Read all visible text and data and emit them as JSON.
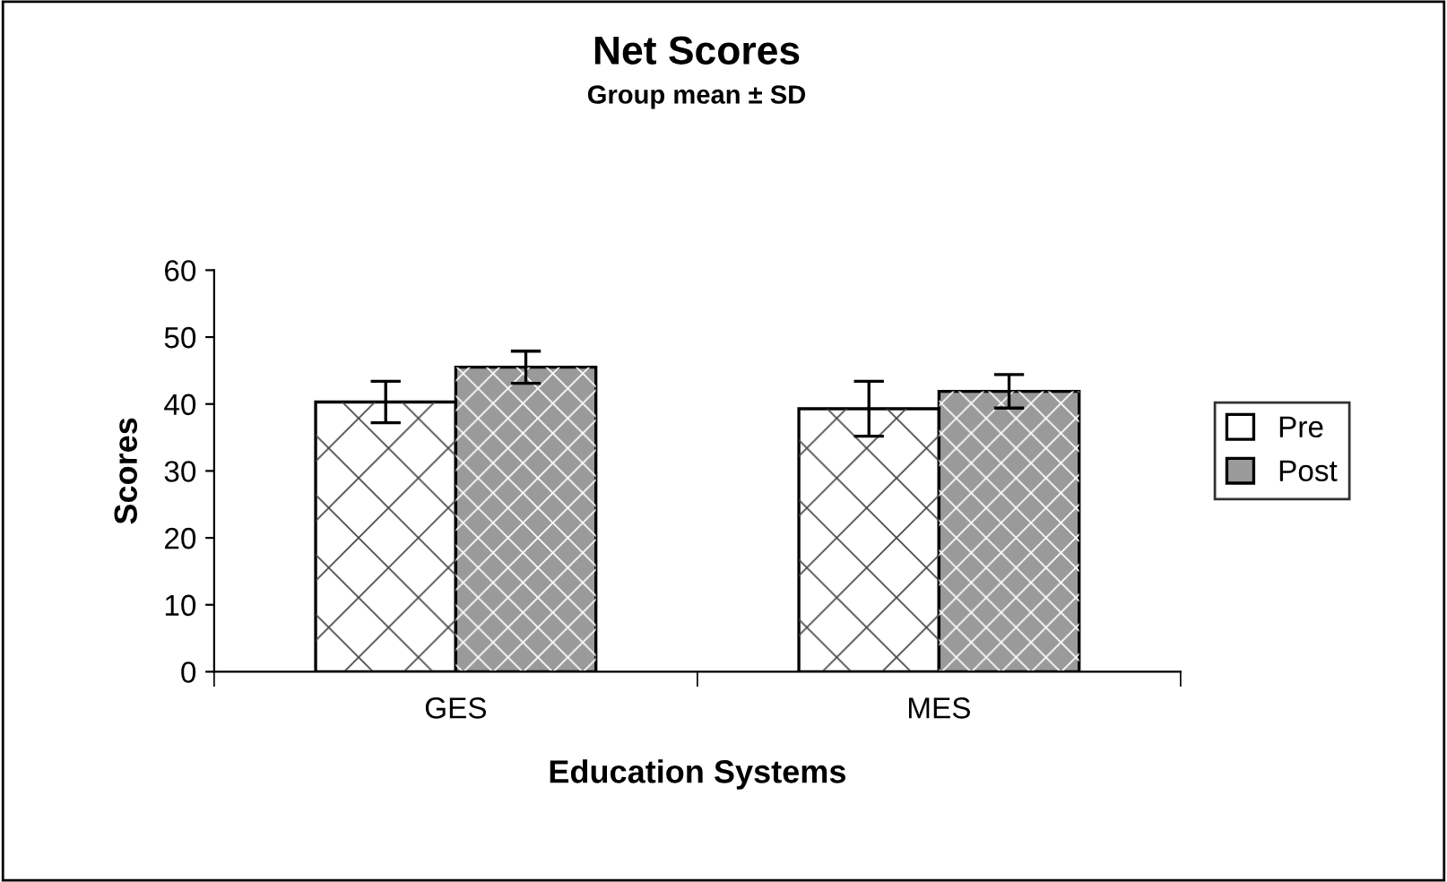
{
  "chart_data": {
    "type": "bar",
    "title": "Net Scores",
    "subtitle": "Group mean ± SD",
    "xlabel": "Education Systems",
    "ylabel": "Scores",
    "categories": [
      "GES",
      "MES"
    ],
    "series": [
      {
        "name": "Pre",
        "color": "#ffffff",
        "values": [
          40.3,
          39.3
        ],
        "errors": [
          3.1,
          4.1
        ]
      },
      {
        "name": "Post",
        "color": "#9a9a9a",
        "values": [
          45.5,
          41.9
        ],
        "errors": [
          2.4,
          2.5
        ]
      }
    ],
    "ylim": [
      0,
      60
    ],
    "yticks": [
      0,
      10,
      20,
      30,
      40,
      50,
      60
    ],
    "grid": false,
    "legend": "right"
  }
}
